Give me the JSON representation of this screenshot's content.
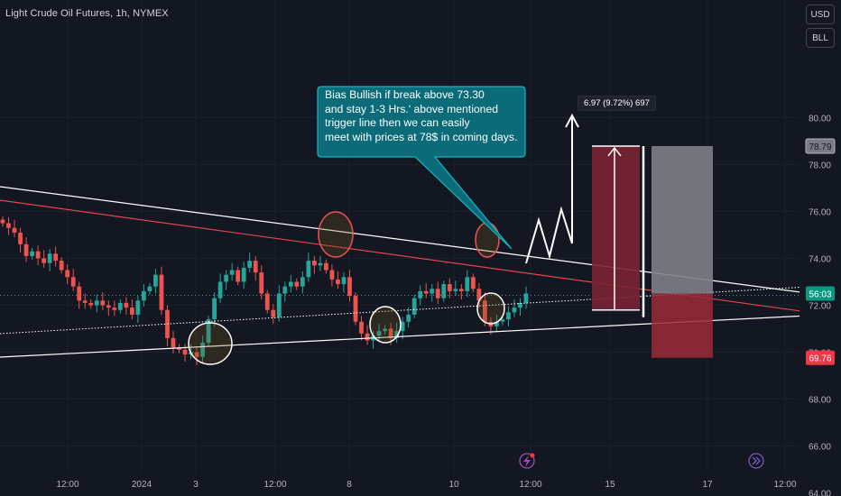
{
  "header": {
    "symbol_title": "Light Crude Oil Futures, 1h, NYMEX"
  },
  "toolbar": {
    "currency_label": "USD",
    "unit_label": "BLL"
  },
  "annotation": {
    "callout_lines": [
      "Bias Bullish if break above 73.30",
      "and stay 1-3 Hrs.' above mentioned",
      "trigger line then we can easily",
      "meet with prices at 78$ in coming days."
    ],
    "measure_label": "6.97 (9.72%) 697"
  },
  "price_labels": {
    "target": "78.79",
    "countdown": "56:03",
    "stop": "69.76"
  },
  "colors": {
    "background": "#131722",
    "candle_up": "#26a69a",
    "candle_down": "#ef5350",
    "trendline_red": "#e0474a",
    "trendline_white": "#ffffff",
    "callout_fill": "#0b6b78",
    "callout_border": "#1ab3c2",
    "profit_zone": "#7d7f86",
    "loss_zone": "#9c2a37",
    "countdown_badge": "#089981",
    "stop_badge": "#f23645"
  },
  "icons": [
    "lightning-icon",
    "fast-forward-icon"
  ],
  "chart_data": {
    "type": "candlestick",
    "ylim": [
      64,
      81
    ],
    "y_ticks": [
      64,
      66,
      68,
      70,
      72,
      74,
      76,
      78,
      80
    ],
    "y_tick_labels": [
      "64.00",
      "66.00",
      "68.00",
      "70.00",
      "72.00",
      "74.00",
      "76.00",
      "78.00",
      "80.00"
    ],
    "x_tick_labels": [
      "12:00",
      "2024",
      "3",
      "12:00",
      "8",
      "10",
      "12:00",
      "15",
      "17",
      "12:00"
    ],
    "series_close": [
      75.5,
      75.3,
      75.1,
      74.6,
      74.1,
      74.3,
      74.0,
      73.8,
      74.2,
      73.9,
      73.5,
      73.2,
      72.8,
      72.2,
      72.1,
      72.0,
      72.2,
      72.0,
      71.9,
      71.8,
      72.1,
      71.9,
      71.6,
      72.2,
      72.6,
      72.8,
      73.3,
      71.8,
      70.6,
      70.2,
      70.1,
      69.9,
      70.0,
      69.8,
      70.4,
      71.4,
      72.3,
      73.0,
      73.3,
      73.5,
      73.0,
      73.6,
      73.9,
      73.4,
      72.5,
      71.8,
      71.5,
      72.5,
      72.8,
      73.0,
      72.8,
      73.2,
      73.9,
      73.7,
      73.8,
      73.5,
      73.1,
      72.9,
      73.2,
      72.4,
      71.3,
      70.8,
      70.5,
      70.7,
      70.9,
      71.0,
      70.6,
      70.9,
      71.3,
      71.6,
      72.3,
      72.6,
      72.5,
      72.7,
      72.3,
      72.9,
      72.6,
      72.7,
      72.6,
      73.2,
      72.7,
      72.2,
      71.3,
      71.1,
      71.3,
      71.4,
      71.7,
      71.9,
      72.1,
      72.5
    ],
    "annotation_levels": {
      "breakout_trigger": 73.3,
      "target_price": 78.79,
      "stop_price": 69.76,
      "current_price": 72.5
    },
    "measure": {
      "change": 6.97,
      "percent": 9.72,
      "ticks": 697
    }
  }
}
